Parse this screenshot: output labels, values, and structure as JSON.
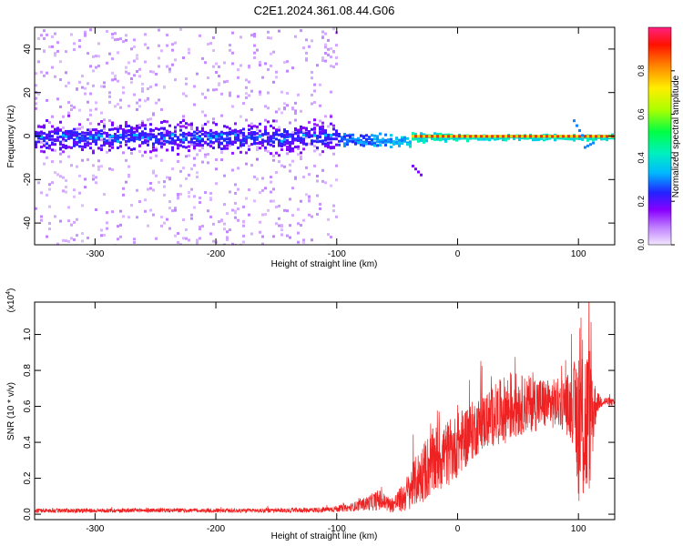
{
  "figure": {
    "title": "C2E1.2024.361.08.44.G06"
  },
  "chart_data": [
    {
      "type": "heatmap",
      "title": "C2E1.2024.361.08.44.G06",
      "xlabel": "Height of straight line (km)",
      "ylabel": "Frequency (Hz)",
      "xlim": [
        -350,
        130
      ],
      "ylim": [
        -50,
        50
      ],
      "xticks": [
        -300,
        -200,
        -100,
        0,
        100
      ],
      "yticks": [
        -40,
        -20,
        0,
        20,
        40
      ],
      "colorbar": {
        "label": "Normalized spectral amplitude",
        "range": [
          0,
          1
        ],
        "ticks": [
          0.0,
          0.2,
          0.4,
          0.6,
          0.8
        ],
        "colormap": [
          "#d8b8ff",
          "#9900ff",
          "#2222ff",
          "#00d0ff",
          "#00ff66",
          "#80ff00",
          "#ffff00",
          "#ff8000",
          "#ff0000",
          "#ff2080"
        ]
      },
      "features": {
        "scatter_bulk_x_range": [
          -350,
          -100
        ],
        "narrow_band_x_range": [
          -100,
          130
        ],
        "band_center_hz": 0,
        "peak_amplitude_x_range": [
          -40,
          130
        ]
      }
    },
    {
      "type": "line",
      "xlabel": "Height of straight line (km)",
      "ylabel": "SNR (10 * v/v)",
      "y_multiplier": "(x10",
      "y_multiplier_exp": "4",
      "xlim": [
        -350,
        130
      ],
      "ylim": [
        -0.03,
        1.18
      ],
      "xticks": [
        -300,
        -200,
        -100,
        0,
        100
      ],
      "yticks": [
        0.0,
        0.2,
        0.4,
        0.6,
        0.8,
        1.0
      ],
      "color": "#ee2222",
      "envelope": {
        "x": [
          -350,
          -300,
          -250,
          -200,
          -150,
          -110,
          -90,
          -75,
          -65,
          -55,
          -45,
          -35,
          -25,
          -15,
          -5,
          5,
          15,
          25,
          35,
          45,
          55,
          65,
          75,
          85,
          95,
          100,
          105,
          110,
          115,
          120,
          130
        ],
        "mean": [
          0.02,
          0.02,
          0.022,
          0.02,
          0.02,
          0.025,
          0.035,
          0.06,
          0.08,
          0.05,
          0.09,
          0.18,
          0.26,
          0.32,
          0.35,
          0.42,
          0.48,
          0.53,
          0.57,
          0.6,
          0.61,
          0.62,
          0.61,
          0.62,
          0.6,
          0.52,
          0.5,
          0.55,
          0.62,
          0.63,
          0.62
        ],
        "spread": [
          0.012,
          0.012,
          0.012,
          0.012,
          0.012,
          0.015,
          0.02,
          0.04,
          0.06,
          0.04,
          0.08,
          0.14,
          0.18,
          0.2,
          0.18,
          0.18,
          0.16,
          0.16,
          0.18,
          0.2,
          0.16,
          0.16,
          0.14,
          0.14,
          0.2,
          0.45,
          0.5,
          0.4,
          0.06,
          0.03,
          0.02
        ]
      }
    }
  ]
}
